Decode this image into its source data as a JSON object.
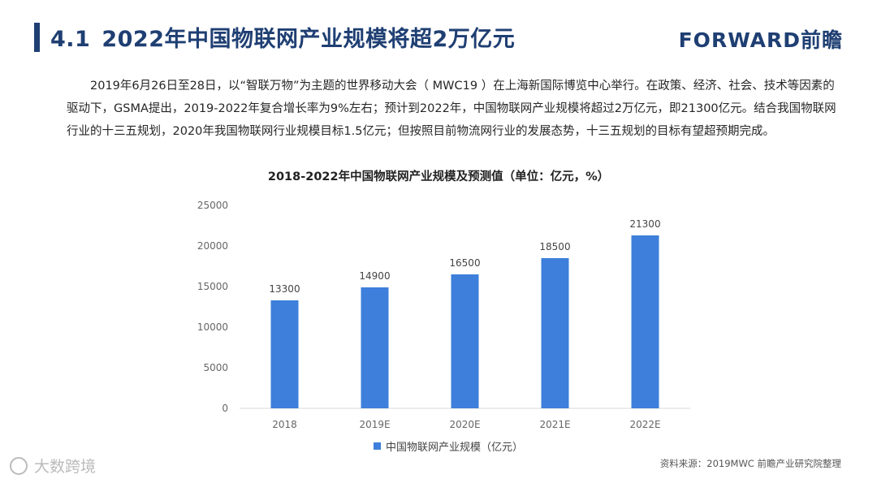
{
  "header": {
    "section_number": "4.1",
    "title": "2022年中国物联网产业规模将超2万亿元",
    "brand": "FORWARD前瞻",
    "brand_color": "#1f3f73"
  },
  "body_text": "2019年6月26日至28日，以“智联万物”为主题的世界移动大会（ MWC19 ）在上海新国际博览中心举行。在政策、经济、社会、技术等因素的驱动下，GSMA提出，2019-2022年复合增长率为9%左右；预计到2022年，中国物联网产业规模将超过2万亿元，即21300亿元。结合我国物联网行业的十三五规划，2020年我国物联网行业规模目标1.5亿元；但按照目前物流网行业的发展态势，十三五规划的目标有望超预期完成。",
  "chart_data": {
    "type": "bar",
    "title": "2018-2022年中国物联网产业规模及预测值（单位：亿元，%）",
    "categories": [
      "2018",
      "2019E",
      "2020E",
      "2021E",
      "2022E"
    ],
    "series": [
      {
        "name": "中国物联网产业规模（亿元）",
        "values": [
          13300,
          14900,
          16500,
          18500,
          21300
        ]
      }
    ],
    "ylim": [
      0,
      25000
    ],
    "yticks": [
      "0",
      "5000",
      "10000",
      "15000",
      "20000",
      "25000"
    ],
    "grid": false,
    "legend_position": "bottom",
    "bar_color": "#3d7fdb"
  },
  "footer": {
    "source": "资料来源：2019MWC 前瞻产业研究院整理",
    "watermark": "大数跨境"
  }
}
